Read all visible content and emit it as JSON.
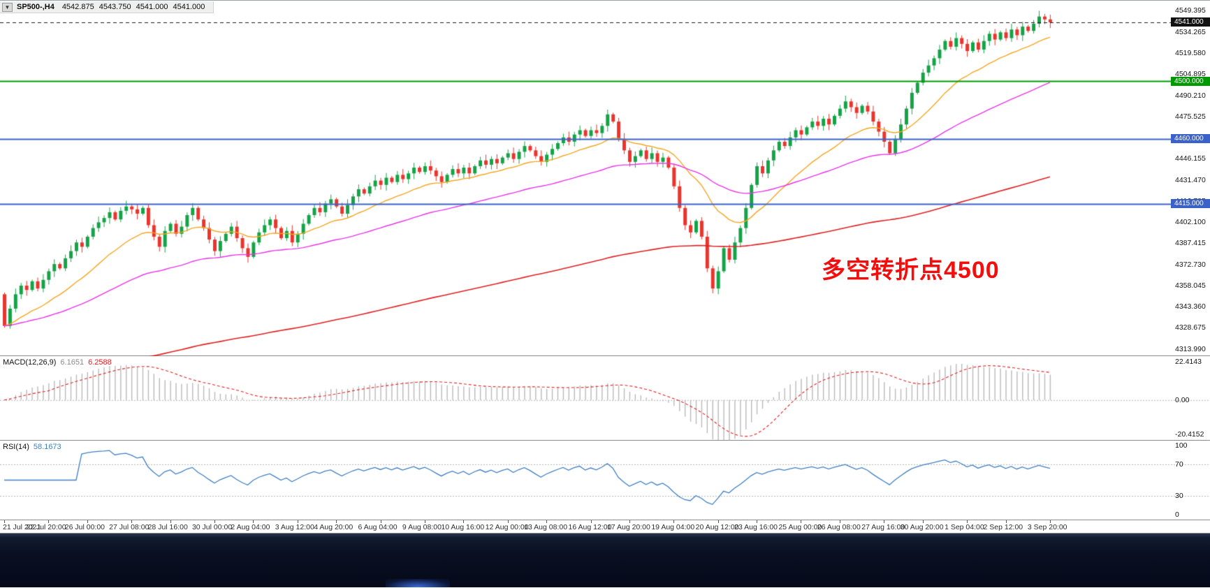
{
  "symbol_bar": {
    "collapse_icon": "▼",
    "symbol": "SP500-,H4",
    "open": "4542.875",
    "high": "4543.750",
    "low": "4541.000",
    "close": "4541.000"
  },
  "main_chart": {
    "annotation": "多空转折点4500",
    "annotation_color": "#f40d0d",
    "axis_labels": [
      "4549.395",
      "4534.265",
      "4519.580",
      "4504.895",
      "4490.210",
      "4475.525",
      "4460.840",
      "4446.155",
      "4431.470",
      "4416.785",
      "4402.100",
      "4387.415",
      "4372.730",
      "4358.045",
      "4343.360",
      "4328.675",
      "4313.990"
    ],
    "price_lines": [
      {
        "label": "4541.000",
        "value": 4541.0,
        "color": "#1a1a1a",
        "style": "dash",
        "badge": "#111111"
      },
      {
        "label": "4500.000",
        "value": 4500.0,
        "color": "#009900",
        "style": "solid",
        "badge": "#009900"
      },
      {
        "label": "4460.000",
        "value": 4460.0,
        "color": "#3a62c8",
        "style": "solid",
        "badge": "#3a62c8"
      },
      {
        "label": "4415.000",
        "value": 4415.0,
        "color": "#3a62c8",
        "style": "solid",
        "badge": "#3a62c8"
      }
    ],
    "scale": {
      "max": 4556,
      "min": 4309
    }
  },
  "macd": {
    "name": "MACD(12,26,9)",
    "main_value": "6.1651",
    "signal_value": "6.2588",
    "axis": {
      "top": "22.4143",
      "zero": "0.00",
      "bottom": "-20.4152"
    },
    "scale": {
      "max": 22.4143,
      "min": -20.4152
    }
  },
  "rsi": {
    "name": "RSI(14)",
    "value": "58.1673",
    "axis": [
      "100",
      "70",
      "30",
      "0"
    ],
    "levels": [
      70,
      30
    ]
  },
  "time_axis": [
    "21 Jul 2021",
    "22 Jul 20:00",
    "26 Jul 00:00",
    "27 Jul 08:00",
    "28 Jul 16:00",
    "30 Jul 00:00",
    "2 Aug 04:00",
    "3 Aug 12:00",
    "4 Aug 20:00",
    "6 Aug 04:00",
    "9 Aug 08:00",
    "10 Aug 16:00",
    "12 Aug 00:00",
    "13 Aug 08:00",
    "16 Aug 12:00",
    "17 Aug 20:00",
    "19 Aug 04:00",
    "20 Aug 12:00",
    "23 Aug 16:00",
    "25 Aug 00:00",
    "26 Aug 08:00",
    "27 Aug 16:00",
    "30 Aug 20:00",
    "1 Sep 04:00",
    "2 Sep 12:00",
    "3 Sep 20:00"
  ],
  "chart_data": {
    "type": "candlestick",
    "symbol": "SP500",
    "timeframe": "H4",
    "bars": 190,
    "first_open": 4352,
    "closes": [
      4330,
      4342,
      4352,
      4358,
      4355,
      4361,
      4356,
      4362,
      4368,
      4373,
      4370,
      4377,
      4382,
      4388,
      4385,
      4392,
      4398,
      4402,
      4405,
      4409,
      4404,
      4410,
      4413,
      4411,
      4408,
      4412,
      4400,
      4392,
      4385,
      4396,
      4401,
      4394,
      4399,
      4407,
      4412,
      4404,
      4398,
      4390,
      4382,
      4389,
      4394,
      4399,
      4391,
      4384,
      4378,
      4388,
      4395,
      4400,
      4404,
      4398,
      4391,
      4396,
      4388,
      4394,
      4401,
      4407,
      4412,
      4409,
      4415,
      4418,
      4413,
      4408,
      4414,
      4420,
      4425,
      4422,
      4427,
      4431,
      4428,
      4433,
      4430,
      4435,
      4432,
      4436,
      4440,
      4437,
      4441,
      4438,
      4434,
      4430,
      4435,
      4439,
      4436,
      4440,
      4436,
      4441,
      4445,
      4442,
      4446,
      4443,
      4447,
      4450,
      4446,
      4451,
      4455,
      4452,
      4448,
      4444,
      4449,
      4453,
      4457,
      4461,
      4458,
      4463,
      4466,
      4462,
      4466,
      4464,
      4469,
      4477,
      4472,
      4460,
      4452,
      4444,
      4448,
      4452,
      4446,
      4450,
      4444,
      4447,
      4440,
      4427,
      4412,
      4400,
      4395,
      4403,
      4392,
      4370,
      4356,
      4368,
      4384,
      4376,
      4388,
      4398,
      4412,
      4428,
      4441,
      4436,
      4445,
      4452,
      4458,
      4455,
      4461,
      4466,
      4463,
      4468,
      4472,
      4469,
      4474,
      4470,
      4476,
      4481,
      4486,
      4482,
      4478,
      4483,
      4479,
      4472,
      4465,
      4458,
      4450,
      4460,
      4470,
      4481,
      4492,
      4499,
      4506,
      4511,
      4516,
      4522,
      4528,
      4524,
      4530,
      4526,
      4521,
      4527,
      4522,
      4528,
      4533,
      4529,
      4534,
      4530,
      4536,
      4532,
      4538,
      4535,
      4540,
      4545,
      4543,
      4541
    ],
    "overlays": [
      {
        "name": "fast-ma",
        "type": "ema",
        "period": 18,
        "color": "#f5a623"
      },
      {
        "name": "mid-ma",
        "type": "ema",
        "period": 55,
        "color": "#e833e8"
      },
      {
        "name": "slow-ma",
        "type": "ema",
        "period": 200,
        "seed": 4285,
        "color": "#e02020"
      }
    ],
    "indicators": [
      {
        "name": "MACD",
        "params": [
          12,
          26,
          9
        ],
        "current_main": 6.1651,
        "current_signal": 6.2588
      },
      {
        "name": "RSI",
        "params": [
          14
        ],
        "current": 58.1673
      }
    ],
    "horizontal_levels": [
      4541.0,
      4500.0,
      4460.0,
      4415.0
    ]
  },
  "colors": {
    "bull": "#16a348",
    "bear": "#e8352e",
    "macd_hist": "#b9b9b9",
    "macd_signal": "#e02020",
    "rsi_line": "#3f7fc1",
    "level_green": "#009900",
    "level_blue": "#3a62c8",
    "background": "#ffffff",
    "taskbar": "#0a1022"
  }
}
